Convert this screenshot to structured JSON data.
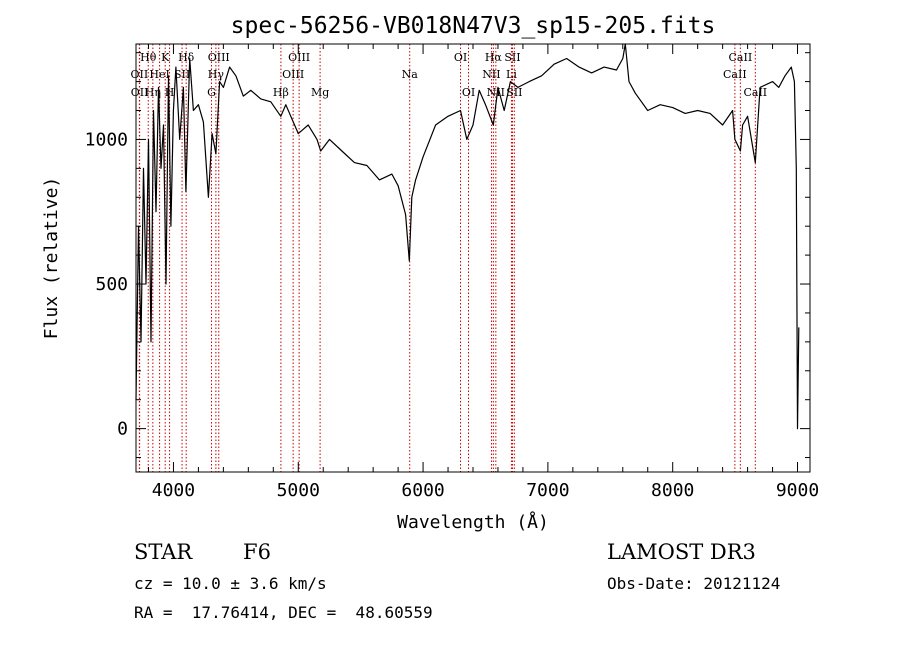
{
  "chart_data": {
    "type": "line",
    "title": "spec-56256-VB018N47V3_sp15-205.fits",
    "xlabel": "Wavelength (Å)",
    "ylabel": "Flux (relative)",
    "xlim": [
      3700,
      9100
    ],
    "ylim": [
      -150,
      1330
    ],
    "xticks": [
      4000,
      5000,
      6000,
      7000,
      8000,
      9000
    ],
    "yticks": [
      0,
      500,
      1000
    ],
    "series": [
      {
        "name": "spectrum",
        "x": [
          3700,
          3720,
          3740,
          3760,
          3780,
          3800,
          3820,
          3840,
          3860,
          3880,
          3900,
          3920,
          3940,
          3960,
          3980,
          4000,
          4020,
          4050,
          4080,
          4100,
          4130,
          4160,
          4200,
          4240,
          4280,
          4310,
          4340,
          4370,
          4400,
          4450,
          4500,
          4560,
          4620,
          4700,
          4780,
          4860,
          4900,
          4960,
          5000,
          5080,
          5150,
          5180,
          5250,
          5350,
          5450,
          5550,
          5650,
          5750,
          5800,
          5860,
          5890,
          5910,
          5940,
          6000,
          6100,
          6200,
          6300,
          6350,
          6400,
          6450,
          6500,
          6563,
          6600,
          6650,
          6700,
          6760,
          6850,
          6950,
          7050,
          7150,
          7250,
          7350,
          7450,
          7550,
          7600,
          7620,
          7650,
          7700,
          7800,
          7900,
          8000,
          8100,
          8200,
          8300,
          8400,
          8480,
          8498,
          8542,
          8560,
          8600,
          8662,
          8700,
          8800,
          8850,
          8900,
          8950,
          8975,
          8990,
          9000,
          9010
        ],
        "y": [
          100,
          700,
          300,
          900,
          500,
          1000,
          300,
          1100,
          750,
          1180,
          900,
          1050,
          500,
          1220,
          700,
          1100,
          1250,
          1000,
          1180,
          820,
          1280,
          1100,
          1120,
          1060,
          800,
          1020,
          950,
          1200,
          1180,
          1250,
          1220,
          1150,
          1170,
          1140,
          1130,
          1080,
          1120,
          1060,
          1020,
          1050,
          1000,
          960,
          1000,
          960,
          920,
          910,
          860,
          880,
          840,
          740,
          580,
          800,
          860,
          940,
          1050,
          1080,
          1100,
          1000,
          1050,
          1170,
          1120,
          1050,
          1180,
          1100,
          1200,
          1180,
          1200,
          1220,
          1260,
          1280,
          1250,
          1230,
          1250,
          1240,
          1280,
          1330,
          1200,
          1160,
          1100,
          1120,
          1110,
          1090,
          1100,
          1090,
          1050,
          1100,
          1000,
          960,
          1050,
          1080,
          920,
          1180,
          1200,
          1180,
          1220,
          1250,
          1200,
          900,
          0,
          350
        ]
      }
    ],
    "lines": [
      {
        "label": "Hθ",
        "x": 3798,
        "row": 1
      },
      {
        "label": "OII",
        "x": 3727,
        "row": 2
      },
      {
        "label": "OII",
        "x": 3729,
        "row": 3
      },
      {
        "label": "K",
        "x": 3934,
        "row": 1
      },
      {
        "label": "HeI",
        "x": 3889,
        "row": 2
      },
      {
        "label": "Hη",
        "x": 3835,
        "row": 3
      },
      {
        "label": "SII",
        "x": 4069,
        "row": 2
      },
      {
        "label": "H",
        "x": 3969,
        "row": 3
      },
      {
        "label": "Hδ",
        "x": 4102,
        "row": 1
      },
      {
        "label": "OIII",
        "x": 4363,
        "row": 1
      },
      {
        "label": "Hγ",
        "x": 4340,
        "row": 2
      },
      {
        "label": "G",
        "x": 4305,
        "row": 3
      },
      {
        "label": "Hβ",
        "x": 4861,
        "row": 3
      },
      {
        "label": "OIII",
        "x": 5007,
        "row": 1
      },
      {
        "label": "OIII",
        "x": 4959,
        "row": 2
      },
      {
        "label": "Mg",
        "x": 5175,
        "row": 3
      },
      {
        "label": "Na",
        "x": 5893,
        "row": 2
      },
      {
        "label": "OI",
        "x": 6300,
        "row": 1
      },
      {
        "label": "OI",
        "x": 6364,
        "row": 3
      },
      {
        "label": "Hα",
        "x": 6563,
        "row": 1
      },
      {
        "label": "SII",
        "x": 6716,
        "row": 1
      },
      {
        "label": "NII",
        "x": 6548,
        "row": 2
      },
      {
        "label": "Li",
        "x": 6708,
        "row": 2
      },
      {
        "label": "NII",
        "x": 6583,
        "row": 3
      },
      {
        "label": "SII",
        "x": 6731,
        "row": 3
      },
      {
        "label": "CaII",
        "x": 8542,
        "row": 1
      },
      {
        "label": "CaII",
        "x": 8498,
        "row": 2
      },
      {
        "label": "CaII",
        "x": 8662,
        "row": 3
      }
    ],
    "colors": {
      "spectrum": "#000000",
      "marker": "#cc0000"
    }
  },
  "info": {
    "class_type": "STAR",
    "subclass": "F6",
    "survey": "LAMOST DR3",
    "cz": "cz = 10.0 ± 3.6 km/s",
    "obs_date": "Obs-Date: 20121124",
    "coords": "RA =  17.76414, DEC =  48.60559"
  }
}
